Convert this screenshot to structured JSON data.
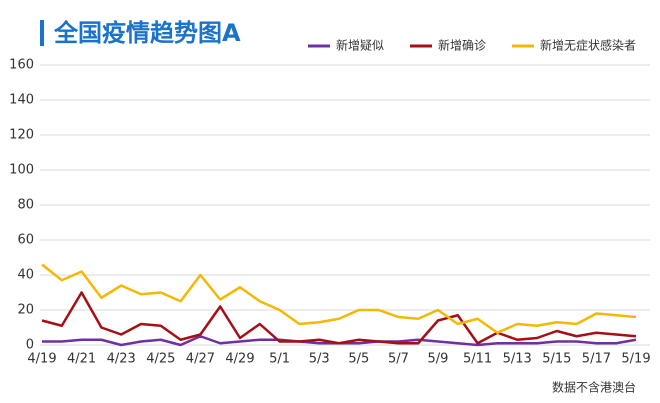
{
  "chart_data": {
    "type": "line",
    "title": "全国疫情趋势图A",
    "footnote": "数据不含港澳台",
    "categories": [
      "4/19",
      null,
      "4/21",
      null,
      "4/23",
      null,
      "4/25",
      null,
      "4/27",
      null,
      "4/29",
      null,
      "5/1",
      null,
      "5/3",
      null,
      "5/5",
      null,
      "5/7",
      null,
      "5/9",
      null,
      "5/11",
      null,
      "5/13",
      null,
      "5/15",
      null,
      "5/17",
      null,
      "5/19"
    ],
    "series": [
      {
        "name": "新增疑似",
        "color": "#7030a0",
        "values": [
          2,
          2,
          3,
          3,
          0,
          2,
          3,
          0,
          5,
          1,
          2,
          3,
          3,
          2,
          1,
          1,
          1,
          2,
          2,
          3,
          2,
          1,
          0,
          1,
          1,
          1,
          2,
          2,
          1,
          1,
          3
        ]
      },
      {
        "name": "新增确诊",
        "color": "#a50f15",
        "values": [
          14,
          11,
          30,
          10,
          6,
          12,
          11,
          3,
          6,
          22,
          4,
          12,
          2,
          2,
          3,
          1,
          3,
          2,
          1,
          1,
          14,
          17,
          1,
          7,
          3,
          4,
          8,
          5,
          7,
          6,
          5
        ]
      },
      {
        "name": "新增无症状感染者",
        "color": "#f5b800",
        "values": [
          46,
          37,
          42,
          27,
          34,
          29,
          30,
          25,
          40,
          26,
          33,
          25,
          20,
          12,
          13,
          15,
          20,
          20,
          16,
          15,
          20,
          12,
          15,
          7,
          12,
          11,
          13,
          12,
          18,
          17,
          16
        ]
      }
    ],
    "ylim": [
      0,
      160
    ],
    "yticks": [
      0,
      20,
      40,
      60,
      80,
      100,
      120,
      140,
      160
    ],
    "grid": true
  }
}
